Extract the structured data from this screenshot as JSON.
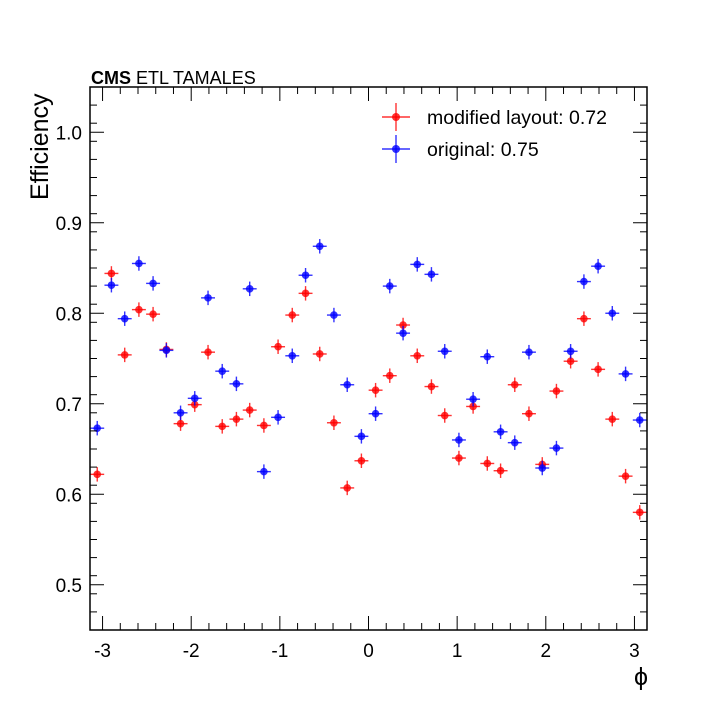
{
  "chart_data": {
    "type": "scatter",
    "header": {
      "bold": "CMS",
      "rest": " ETL TAMALES"
    },
    "xlabel": "ϕ",
    "ylabel": "Efficiency",
    "xlim": [
      -3.14159,
      3.14159
    ],
    "ylim": [
      0.45,
      1.05
    ],
    "x_ticks": [
      -3,
      -2,
      -1,
      0,
      1,
      2,
      3
    ],
    "x_tick_labels": [
      "-3",
      "-2",
      "-1",
      "0",
      "1",
      "2",
      "3"
    ],
    "y_ticks": [
      0.5,
      0.6,
      0.7,
      0.8,
      0.9,
      1.0
    ],
    "y_tick_labels": [
      "0.5",
      "0.6",
      "0.7",
      "0.8",
      "0.9",
      "1.0"
    ],
    "grid": false,
    "legend_position": "top-right",
    "x": [
      -3.06,
      -2.9,
      -2.75,
      -2.59,
      -2.43,
      -2.28,
      -2.12,
      -1.96,
      -1.81,
      -1.65,
      -1.49,
      -1.34,
      -1.18,
      -1.02,
      -0.86,
      -0.71,
      -0.55,
      -0.39,
      -0.24,
      -0.08,
      0.08,
      0.24,
      0.39,
      0.55,
      0.71,
      0.86,
      1.02,
      1.18,
      1.34,
      1.49,
      1.65,
      1.81,
      1.96,
      2.12,
      2.28,
      2.43,
      2.59,
      2.75,
      2.9,
      3.06
    ],
    "x_err": 0.0785,
    "series": [
      {
        "name": "modified layout: 0.72",
        "color": "#ff0000",
        "values": [
          0.622,
          0.844,
          0.754,
          0.804,
          0.799,
          0.76,
          0.678,
          0.699,
          0.757,
          0.675,
          0.683,
          0.693,
          0.676,
          0.763,
          0.798,
          0.822,
          0.755,
          0.679,
          0.607,
          0.637,
          0.715,
          0.731,
          0.787,
          0.753,
          0.719,
          0.687,
          0.64,
          0.697,
          0.634,
          0.626,
          0.721,
          0.689,
          0.633,
          0.714,
          0.747,
          0.794,
          0.738,
          0.683,
          0.62,
          0.58
        ],
        "y_err": 0.008
      },
      {
        "name": "original: 0.75",
        "color": "#0000ff",
        "values": [
          0.673,
          0.831,
          0.794,
          0.855,
          0.833,
          0.759,
          0.69,
          0.706,
          0.817,
          0.736,
          0.722,
          0.827,
          0.625,
          0.685,
          0.753,
          0.842,
          0.874,
          0.798,
          0.721,
          0.664,
          0.689,
          0.83,
          0.778,
          0.854,
          0.843,
          0.758,
          0.66,
          0.705,
          0.752,
          0.669,
          0.657,
          0.757,
          0.629,
          0.651,
          0.758,
          0.835,
          0.852,
          0.8,
          0.733,
          0.682
        ],
        "y_err": 0.008
      }
    ]
  }
}
